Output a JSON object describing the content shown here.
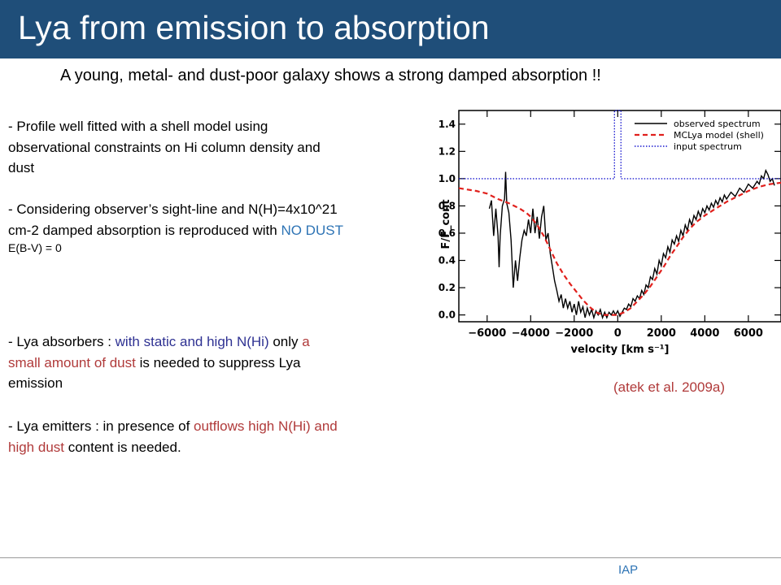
{
  "slide": {
    "title": "Lya from emission to absorption",
    "subtitle": "A young, metal- and dust-poor galaxy shows a strong damped absorption !!",
    "p1": {
      "line1": "- Profile well fitted with a shell model using",
      "line2": "observational constraints on Hi column density and",
      "line3": "dust"
    },
    "p2": {
      "line1": "- Considering observer’s sight-line and N(H)=4x10^21",
      "line2a": "cm-2 damped absorption is reproduced with ",
      "line2b": "NO DUST",
      "line3": "E(B-V) = 0"
    },
    "p3": {
      "l1a": "-  Lya absorbers : ",
      "l1b": "with static and high N(Hi)",
      "l1c": " only ",
      "l1d": "a",
      "l2a": "small amount of dust",
      "l2b": " is needed to suppress Lya",
      "l3": "emission"
    },
    "p4": {
      "l1a": "- Lya emitters : in presence of ",
      "l1b": "outflows high N(Hi) and",
      "l2a": "high dust",
      "l2b": " content is needed."
    },
    "citation": "(atek et al. 2009a)",
    "footer": "IAP"
  },
  "chart_data": {
    "type": "line",
    "xlabel": "velocity [km s⁻¹]",
    "ylabel": "F/F_cont",
    "xlim": [
      -7300,
      7500
    ],
    "ylim": [
      -0.05,
      1.5
    ],
    "xticks": [
      -6000,
      -4000,
      -2000,
      0,
      2000,
      4000,
      6000
    ],
    "yticks": [
      0.0,
      0.2,
      0.4,
      0.6,
      0.8,
      1.0,
      1.2,
      1.4
    ],
    "ytick_labels": [
      "0.0",
      "0.2",
      "0.4",
      "0.6",
      "0.8",
      "1.0",
      "1.2",
      "1.4"
    ],
    "legend_position": "top-right",
    "series": [
      {
        "name": "observed spectrum",
        "color": "#000000",
        "style": "solid",
        "points": [
          [
            -5900,
            0.78
          ],
          [
            -5800,
            0.84
          ],
          [
            -5700,
            0.58
          ],
          [
            -5600,
            0.78
          ],
          [
            -5500,
            0.58
          ],
          [
            -5450,
            0.35
          ],
          [
            -5400,
            0.58
          ],
          [
            -5300,
            0.8
          ],
          [
            -5200,
            0.85
          ],
          [
            -5150,
            1.05
          ],
          [
            -5100,
            0.82
          ],
          [
            -5000,
            0.75
          ],
          [
            -4900,
            0.55
          ],
          [
            -4800,
            0.2
          ],
          [
            -4700,
            0.4
          ],
          [
            -4600,
            0.25
          ],
          [
            -4500,
            0.42
          ],
          [
            -4400,
            0.55
          ],
          [
            -4300,
            0.62
          ],
          [
            -4200,
            0.58
          ],
          [
            -4100,
            0.7
          ],
          [
            -4000,
            0.6
          ],
          [
            -3900,
            0.78
          ],
          [
            -3800,
            0.6
          ],
          [
            -3700,
            0.72
          ],
          [
            -3600,
            0.56
          ],
          [
            -3500,
            0.72
          ],
          [
            -3400,
            0.8
          ],
          [
            -3300,
            0.55
          ],
          [
            -3200,
            0.6
          ],
          [
            -3100,
            0.45
          ],
          [
            -3000,
            0.35
          ],
          [
            -2900,
            0.25
          ],
          [
            -2800,
            0.18
          ],
          [
            -2700,
            0.1
          ],
          [
            -2600,
            0.15
          ],
          [
            -2500,
            0.05
          ],
          [
            -2400,
            0.12
          ],
          [
            -2300,
            0.05
          ],
          [
            -2200,
            0.1
          ],
          [
            -2100,
            0.02
          ],
          [
            -2000,
            0.08
          ],
          [
            -1900,
            0.0
          ],
          [
            -1800,
            0.1
          ],
          [
            -1700,
            0.02
          ],
          [
            -1600,
            0.06
          ],
          [
            -1500,
            -0.02
          ],
          [
            -1400,
            0.05
          ],
          [
            -1300,
            0.0
          ],
          [
            -1200,
            0.04
          ],
          [
            -1100,
            -0.02
          ],
          [
            -1000,
            0.03
          ],
          [
            -900,
            0.0
          ],
          [
            -800,
            0.04
          ],
          [
            -700,
            -0.02
          ],
          [
            -600,
            0.02
          ],
          [
            -500,
            -0.02
          ],
          [
            -400,
            0.02
          ],
          [
            -300,
            0.0
          ],
          [
            -200,
            0.03
          ],
          [
            -100,
            0.0
          ],
          [
            0,
            0.03
          ],
          [
            100,
            -0.01
          ],
          [
            200,
            0.02
          ],
          [
            300,
            0.05
          ],
          [
            400,
            0.04
          ],
          [
            500,
            0.08
          ],
          [
            600,
            0.06
          ],
          [
            700,
            0.12
          ],
          [
            800,
            0.1
          ],
          [
            900,
            0.14
          ],
          [
            1000,
            0.12
          ],
          [
            1100,
            0.18
          ],
          [
            1200,
            0.15
          ],
          [
            1300,
            0.22
          ],
          [
            1400,
            0.2
          ],
          [
            1500,
            0.28
          ],
          [
            1600,
            0.26
          ],
          [
            1700,
            0.34
          ],
          [
            1800,
            0.3
          ],
          [
            1900,
            0.4
          ],
          [
            2000,
            0.36
          ],
          [
            2100,
            0.45
          ],
          [
            2200,
            0.42
          ],
          [
            2300,
            0.5
          ],
          [
            2400,
            0.46
          ],
          [
            2500,
            0.55
          ],
          [
            2600,
            0.52
          ],
          [
            2700,
            0.58
          ],
          [
            2800,
            0.54
          ],
          [
            2900,
            0.62
          ],
          [
            3000,
            0.58
          ],
          [
            3100,
            0.66
          ],
          [
            3200,
            0.62
          ],
          [
            3300,
            0.7
          ],
          [
            3400,
            0.66
          ],
          [
            3500,
            0.73
          ],
          [
            3600,
            0.7
          ],
          [
            3700,
            0.76
          ],
          [
            3800,
            0.72
          ],
          [
            3900,
            0.78
          ],
          [
            4000,
            0.75
          ],
          [
            4100,
            0.8
          ],
          [
            4200,
            0.77
          ],
          [
            4300,
            0.82
          ],
          [
            4400,
            0.79
          ],
          [
            4500,
            0.84
          ],
          [
            4600,
            0.81
          ],
          [
            4700,
            0.86
          ],
          [
            4800,
            0.83
          ],
          [
            4900,
            0.88
          ],
          [
            5000,
            0.85
          ],
          [
            5200,
            0.9
          ],
          [
            5400,
            0.87
          ],
          [
            5600,
            0.93
          ],
          [
            5800,
            0.9
          ],
          [
            6000,
            0.96
          ],
          [
            6200,
            0.93
          ],
          [
            6400,
            0.98
          ],
          [
            6500,
            0.96
          ],
          [
            6600,
            1.02
          ],
          [
            6700,
            1.0
          ],
          [
            6800,
            1.06
          ],
          [
            6900,
            1.03
          ],
          [
            7000,
            0.98
          ],
          [
            7100,
            1.0
          ],
          [
            7200,
            0.95
          ]
        ]
      },
      {
        "name": "MCLya model (shell)",
        "color": "#e0201c",
        "style": "dashed",
        "points": [
          [
            -7300,
            0.93
          ],
          [
            -6500,
            0.91
          ],
          [
            -6000,
            0.89
          ],
          [
            -5500,
            0.85
          ],
          [
            -5000,
            0.82
          ],
          [
            -4500,
            0.78
          ],
          [
            -4200,
            0.75
          ],
          [
            -4000,
            0.72
          ],
          [
            -3700,
            0.66
          ],
          [
            -3400,
            0.58
          ],
          [
            -3100,
            0.48
          ],
          [
            -2800,
            0.38
          ],
          [
            -2500,
            0.3
          ],
          [
            -2200,
            0.23
          ],
          [
            -1900,
            0.17
          ],
          [
            -1600,
            0.11
          ],
          [
            -1300,
            0.06
          ],
          [
            -1000,
            0.02
          ],
          [
            -700,
            0.0
          ],
          [
            -400,
            0.0
          ],
          [
            0,
            0.0
          ],
          [
            300,
            0.02
          ],
          [
            600,
            0.05
          ],
          [
            900,
            0.1
          ],
          [
            1200,
            0.15
          ],
          [
            1500,
            0.21
          ],
          [
            1800,
            0.28
          ],
          [
            2100,
            0.35
          ],
          [
            2400,
            0.43
          ],
          [
            2700,
            0.5
          ],
          [
            3000,
            0.57
          ],
          [
            3300,
            0.63
          ],
          [
            3600,
            0.68
          ],
          [
            4000,
            0.73
          ],
          [
            4500,
            0.78
          ],
          [
            5000,
            0.83
          ],
          [
            5500,
            0.87
          ],
          [
            6000,
            0.91
          ],
          [
            6500,
            0.94
          ],
          [
            7000,
            0.96
          ],
          [
            7500,
            0.97
          ]
        ]
      },
      {
        "name": "input spectrum",
        "color": "#1c1cd0",
        "style": "dotted",
        "points": [
          [
            -7300,
            1.0
          ],
          [
            -150,
            1.0
          ],
          [
            -150,
            1.5
          ],
          [
            150,
            1.5
          ],
          [
            150,
            1.0
          ],
          [
            7500,
            1.0
          ]
        ]
      }
    ]
  }
}
